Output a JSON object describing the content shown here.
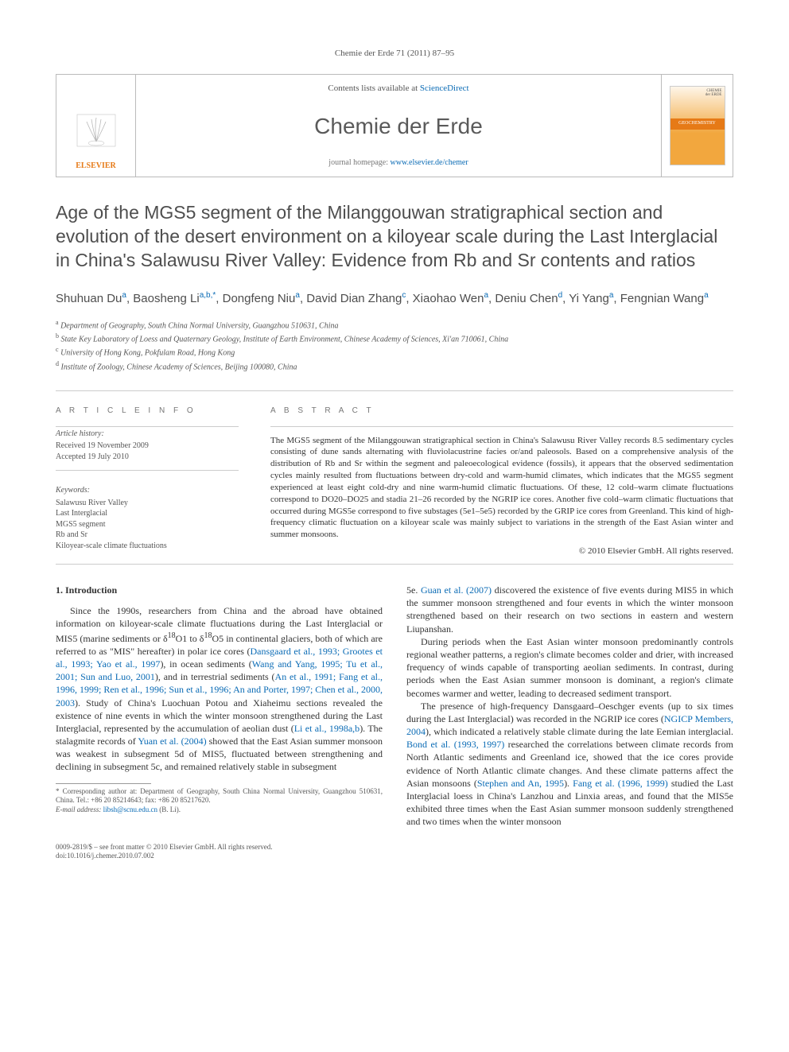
{
  "header": {
    "ref": "Chemie der Erde 71 (2011) 87–95"
  },
  "infobox": {
    "publisher": "ELSEVIER",
    "contents_prefix": "Contents lists available at ",
    "contents_link": "ScienceDirect",
    "journal": "Chemie der Erde",
    "homepage_prefix": "journal homepage: ",
    "homepage_link": "www.elsevier.de/chemer",
    "cover_top1": "CHEMIE",
    "cover_top2": "der ERDE",
    "cover_band": "GEOCHEMISTRY"
  },
  "title": "Age of the MGS5 segment of the Milanggouwan stratigraphical section and evolution of the desert environment on a kiloyear scale during the Last Interglacial in China's Salawusu River Valley: Evidence from Rb and Sr contents and ratios",
  "authors_html": "Shuhuan Du<sup>a</sup>, Baosheng Li<sup>a,b,*</sup>, Dongfeng Niu<sup>a</sup>, David Dian Zhang<sup>c</sup>, Xiaohao Wen<sup>a</sup>, Deniu Chen<sup>d</sup>, Yi Yang<sup>a</sup>, Fengnian Wang<sup>a</sup>",
  "affiliations": {
    "a": "Department of Geography, South China Normal University, Guangzhou 510631, China",
    "b": "State Key Laboratory of Loess and Quaternary Geology, Institute of Earth Environment, Chinese Academy of Sciences, Xi'an 710061, China",
    "c": "University of Hong Kong, Pokfulam Road, Hong Kong",
    "d": "Institute of Zoology, Chinese Academy of Sciences, Beijing 100080, China"
  },
  "article_info": {
    "heading": "A R T I C L E   I N F O",
    "history_label": "Article history:",
    "received": "Received 19 November 2009",
    "accepted": "Accepted 19 July 2010",
    "keywords_label": "Keywords:",
    "keywords": [
      "Salawusu River Valley",
      "Last Interglacial",
      "MGS5 segment",
      "Rb and Sr",
      "Kiloyear-scale climate fluctuations"
    ]
  },
  "abstract": {
    "heading": "A B S T R A C T",
    "text": "The MGS5 segment of the Milanggouwan stratigraphical section in China's Salawusu River Valley records 8.5 sedimentary cycles consisting of dune sands alternating with fluviolacustrine facies or/and paleosols. Based on a comprehensive analysis of the distribution of Rb and Sr within the segment and paleoecological evidence (fossils), it appears that the observed sedimentation cycles mainly resulted from fluctuations between dry-cold and warm-humid climates, which indicates that the MGS5 segment experienced at least eight cold-dry and nine warm-humid climatic fluctuations. Of these, 12 cold–warm climate fluctuations correspond to DO20–DO25 and stadia 21–26 recorded by the NGRIP ice cores. Another five cold–warm climatic fluctuations that occurred during MGS5e correspond to five substages (5e1–5e5) recorded by the GRIP ice cores from Greenland. This kind of high-frequency climatic fluctuation on a kiloyear scale was mainly subject to variations in the strength of the East Asian winter and summer monsoons.",
    "copyright": "© 2010 Elsevier GmbH. All rights reserved."
  },
  "section1": {
    "heading": "1. Introduction",
    "p1_a": "Since the 1990s, researchers from China and the abroad have obtained information on kiloyear-scale climate fluctuations during the Last Interglacial or MIS5 (marine sediments or δ",
    "p1_b": "O1 to δ",
    "p1_c": "O5 in continental glaciers, both of which are referred to as \"MIS\" hereafter) in polar ice cores (",
    "p1_ref1": "Dansgaard et al., 1993; Grootes et al., 1993; Yao et al., 1997",
    "p1_d": "), in ocean sediments (",
    "p1_ref2": "Wang and Yang, 1995; Tu et al., 2001; Sun and Luo, 2001",
    "p1_e": "), and in terrestrial sediments (",
    "p1_ref3": "An et al., 1991; Fang et al., 1996, 1999; Ren et al., 1996; Sun et al., 1996; An and Porter, 1997; Chen et al., 2000, 2003",
    "p1_f": "). Study of China's Luochuan Potou and Xiaheimu sections revealed the existence of nine events in which the winter monsoon strengthened during the Last Interglacial, represented by the accumulation of aeolian dust (",
    "p1_ref4": "Li et al., 1998a,b",
    "p1_g": "). The stalagmite records of ",
    "p1_ref5": "Yuan et al. (2004)",
    "p1_h": " showed that the East Asian summer monsoon was weakest in subsegment 5d of MIS5, fluctuated between strengthening and declining in subsegment 5c, and remained relatively stable in subsegment",
    "p2_a": "5e. ",
    "p2_ref1": "Guan et al. (2007)",
    "p2_b": " discovered the existence of five events during MIS5 in which the summer monsoon strengthened and four events in which the winter monsoon strengthened based on their research on two sections in eastern and western Liupanshan.",
    "p3": "During periods when the East Asian winter monsoon predominantly controls regional weather patterns, a region's climate becomes colder and drier, with increased frequency of winds capable of transporting aeolian sediments. In contrast, during periods when the East Asian summer monsoon is dominant, a region's climate becomes warmer and wetter, leading to decreased sediment transport.",
    "p4_a": "The presence of high-frequency Dansgaard–Oeschger events (up to six times during the Last Interglacial) was recorded in the NGRIP ice cores (",
    "p4_ref1": "NGICP Members, 2004",
    "p4_b": "), which indicated a relatively stable climate during the late Eemian interglacial. ",
    "p4_ref2": "Bond et al. (1993, 1997)",
    "p4_c": " researched the correlations between climate records from North Atlantic sediments and Greenland ice, showed that the ice cores provide evidence of North Atlantic climate changes. And these climate patterns affect the Asian monsoons (",
    "p4_ref3": "Stephen and An, 1995",
    "p4_d": "). ",
    "p4_ref4": "Fang et al. (1996, 1999)",
    "p4_e": " studied the Last Interglacial loess in China's Lanzhou and Linxia areas, and found that the MIS5e exhibited three times when the East Asian summer monsoon suddenly strengthened and two times when the winter monsoon"
  },
  "footnote": {
    "star": "* Corresponding author at: Department of Geography, South China Normal University, Guangzhou 510631, China. Tel.: +86 20 85214643; fax: +86 20 85217620.",
    "email_label": "E-mail address: ",
    "email": "libsh@scnu.edu.cn",
    "email_tail": " (B. Li)."
  },
  "bottom": {
    "line1": "0009-2819/$ – see front matter © 2010 Elsevier GmbH. All rights reserved.",
    "doi": "doi:10.1016/j.chemer.2010.07.002"
  },
  "colors": {
    "link": "#0a6bb5",
    "publisher": "#e67a17"
  }
}
